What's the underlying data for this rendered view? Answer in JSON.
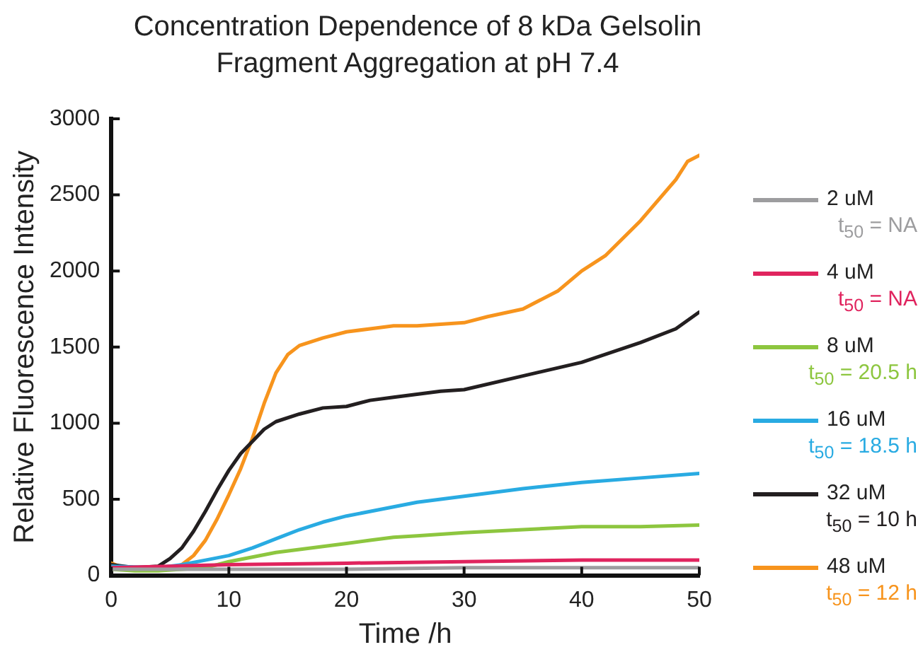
{
  "chart_data": {
    "type": "line",
    "title": "Concentration Dependence of 8 kDa Gelsolin Fragment Aggregation at pH 7.4",
    "xlabel": "Time /h",
    "ylabel": "Relative Fluorescence Intensity",
    "xlim": [
      0,
      50
    ],
    "xticks": [
      0,
      10,
      20,
      30,
      40,
      50
    ],
    "ylim": [
      0,
      3000
    ],
    "yticks": [
      0,
      500,
      1000,
      1500,
      2000,
      2500,
      3000
    ],
    "grid": false,
    "legend": "right",
    "annotations": [
      "t$_{50}$ = NA",
      "t$_{50}$ = NA",
      "t$_{50}$ = 20.5 h",
      "t$_{50}$ = 18.5 h",
      "t$_{50}$ = 10 h",
      "t$_{50}$ = 12 h"
    ],
    "series": [
      {
        "name": "2 uM",
        "color": "#9d9d9f",
        "x": [
          0,
          10,
          20,
          30,
          40,
          50
        ],
        "values": [
          40,
          40,
          40,
          50,
          50,
          50
        ]
      },
      {
        "name": "4 uM",
        "color": "#e0245e",
        "x": [
          0,
          5,
          10,
          20,
          30,
          40,
          50
        ],
        "values": [
          50,
          60,
          70,
          80,
          90,
          100,
          100
        ]
      },
      {
        "name": "8 uM",
        "color": "#8dc63f",
        "x": [
          0,
          2,
          4,
          6,
          8,
          10,
          12,
          14,
          16,
          18,
          20,
          22,
          24,
          26,
          28,
          30,
          35,
          40,
          45,
          50
        ],
        "values": [
          40,
          30,
          30,
          40,
          50,
          90,
          120,
          150,
          170,
          190,
          210,
          230,
          250,
          260,
          270,
          280,
          300,
          320,
          320,
          330
        ]
      },
      {
        "name": "16 uM",
        "color": "#29abe2",
        "x": [
          0,
          4,
          6,
          8,
          10,
          12,
          14,
          16,
          18,
          20,
          22,
          24,
          26,
          28,
          30,
          35,
          40,
          45,
          50
        ],
        "values": [
          60,
          50,
          70,
          100,
          130,
          180,
          240,
          300,
          350,
          390,
          420,
          450,
          480,
          500,
          520,
          570,
          610,
          640,
          670
        ]
      },
      {
        "name": "32 uM",
        "color": "#231f20",
        "x": [
          0,
          2,
          4,
          5,
          6,
          7,
          8,
          9,
          10,
          11,
          12,
          13,
          14,
          16,
          18,
          20,
          22,
          24,
          26,
          28,
          30,
          35,
          40,
          45,
          48,
          50
        ],
        "values": [
          70,
          50,
          60,
          110,
          180,
          290,
          420,
          560,
          690,
          800,
          880,
          960,
          1010,
          1060,
          1100,
          1110,
          1150,
          1170,
          1190,
          1210,
          1220,
          1310,
          1400,
          1530,
          1620,
          1730
        ]
      },
      {
        "name": "48 uM",
        "color": "#f7941d",
        "x": [
          0,
          1,
          2,
          4,
          5,
          6,
          7,
          8,
          9,
          10,
          11,
          12,
          13,
          14,
          15,
          16,
          18,
          20,
          22,
          24,
          26,
          28,
          30,
          32,
          35,
          38,
          40,
          42,
          45,
          48,
          49,
          50
        ],
        "values": [
          80,
          50,
          50,
          50,
          50,
          70,
          130,
          230,
          370,
          530,
          700,
          900,
          1130,
          1330,
          1450,
          1510,
          1560,
          1600,
          1620,
          1640,
          1640,
          1650,
          1660,
          1700,
          1750,
          1870,
          2000,
          2100,
          2330,
          2600,
          2720,
          2760
        ]
      }
    ]
  }
}
